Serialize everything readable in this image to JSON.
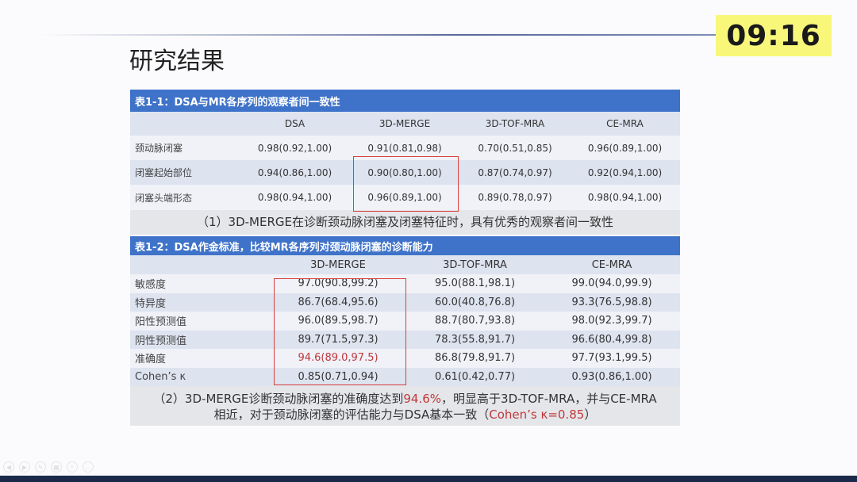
{
  "slide": {
    "title": "研究结果",
    "timer": "09:16"
  },
  "table1": {
    "title": "表1-1：DSA与MR各序列的观察者间一致性",
    "columns": [
      "",
      "DSA",
      "3D-MERGE",
      "3D-TOF-MRA",
      "CE-MRA"
    ],
    "rows": [
      [
        "颈动脉闭塞",
        "0.98(0.92,1.00)",
        "0.91(0.81,0.98)",
        "0.70(0.51,0.85)",
        "0.96(0.89,1.00)"
      ],
      [
        "闭塞起始部位",
        "0.94(0.86,1.00)",
        "0.90(0.80,1.00)",
        "0.87(0.74,0.97)",
        "0.92(0.94,1.00)"
      ],
      [
        "闭塞头端形态",
        "0.98(0.94,1.00)",
        "0.96(0.89,1.00)",
        "0.89(0.78,0.97)",
        "0.98(0.94,1.00)"
      ]
    ],
    "caption": "（1）3D-MERGE在诊断颈动脉闭塞及闭塞特征时，具有优秀的观察者间一致性"
  },
  "table2": {
    "title": "表1-2：DSA作金标准，比较MR各序列对颈动脉闭塞的诊断能力",
    "columns": [
      "",
      "3D-MERGE",
      "3D-TOF-MRA",
      "CE-MRA"
    ],
    "rows": [
      [
        "敏感度",
        "97.0(90.8,99.2)",
        "95.0(88.1,98.1)",
        "99.0(94.0,99.9)"
      ],
      [
        "特异度",
        "86.7(68.4,95.6)",
        "60.0(40.8,76.8)",
        "93.3(76.5,98.8)"
      ],
      [
        "阳性预测值",
        "96.0(89.5,98.7)",
        "88.7(80.7,93.8)",
        "98.0(92.3,99.7)"
      ],
      [
        "阴性预测值",
        "89.7(71.5,97.3)",
        "78.3(55.8,91.7)",
        "96.6(80.4,99.8)"
      ],
      [
        "准确度",
        "94.6(89.0,97.5)",
        "86.8(79.8,91.7)",
        "97.7(93.1,99.5)"
      ],
      [
        "Cohen’s κ",
        "0.85(0.71,0.94)",
        "0.61(0.42,0.77)",
        "0.93(0.86,1.00)"
      ]
    ],
    "caption": {
      "p1": "（2）3D-MERGE诊断颈动脉闭塞的准确度达到",
      "h1": "94.6%",
      "p2": "，明显高于3D-TOF-MRA，并与CE-MRA",
      "p3": "相近，对于颈动脉闭塞的评估能力与DSA基本一致（",
      "h2": "Cohen’s κ=0.85",
      "p4": "）"
    }
  },
  "colors": {
    "header": "#3f73c9",
    "highlight": "#c0383a",
    "timer_bg": "#f9f77a"
  }
}
